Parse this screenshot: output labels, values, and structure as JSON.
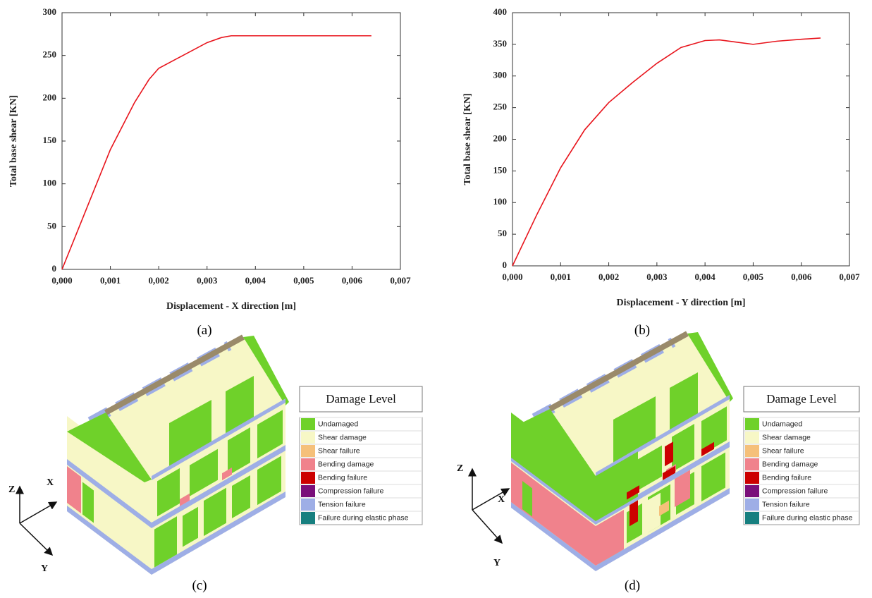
{
  "chart_data": [
    {
      "type": "line",
      "caption": "(a)",
      "x_label": "Displacement - X direction [m]",
      "y_label": "Total base shear [KN]",
      "x": [
        0,
        0.0005,
        0.001,
        0.0015,
        0.0018,
        0.002,
        0.0025,
        0.003,
        0.0033,
        0.0035,
        0.004,
        0.005,
        0.0064
      ],
      "series": [
        {
          "color": "#e8141c",
          "values": [
            0,
            70,
            140,
            195,
            222,
            235,
            250,
            265,
            271,
            273,
            273,
            273,
            273
          ]
        }
      ],
      "xlim": [
        0,
        0.007
      ],
      "ylim": [
        0,
        300
      ],
      "xticks": [
        {
          "value": 0,
          "label": "0,000"
        },
        {
          "value": 0.001,
          "label": "0,001"
        },
        {
          "value": 0.002,
          "label": "0,002"
        },
        {
          "value": 0.003,
          "label": "0,003"
        },
        {
          "value": 0.004,
          "label": "0,004"
        },
        {
          "value": 0.005,
          "label": "0,005"
        },
        {
          "value": 0.006,
          "label": "0,006"
        },
        {
          "value": 0.007,
          "label": "0,007"
        }
      ],
      "yticks": [
        0,
        50,
        100,
        150,
        200,
        250,
        300
      ]
    },
    {
      "type": "line",
      "caption": "(b)",
      "x_label": "Displacement - Y direction [m]",
      "y_label": "Total base shear [KN]",
      "x": [
        0,
        0.0005,
        0.001,
        0.0015,
        0.002,
        0.0025,
        0.003,
        0.0035,
        0.004,
        0.0043,
        0.0047,
        0.005,
        0.0055,
        0.006,
        0.0064
      ],
      "series": [
        {
          "color": "#e8141c",
          "values": [
            0,
            80,
            155,
            215,
            258,
            290,
            320,
            345,
            356,
            357,
            353,
            350,
            355,
            358,
            360
          ]
        }
      ],
      "xlim": [
        0,
        0.007
      ],
      "ylim": [
        0,
        400
      ],
      "xticks": [
        {
          "value": 0,
          "label": "0,000"
        },
        {
          "value": 0.001,
          "label": "0,001"
        },
        {
          "value": 0.002,
          "label": "0,002"
        },
        {
          "value": 0.003,
          "label": "0,003"
        },
        {
          "value": 0.004,
          "label": "0,004"
        },
        {
          "value": 0.005,
          "label": "0,005"
        },
        {
          "value": 0.006,
          "label": "0,006"
        },
        {
          "value": 0.007,
          "label": "0,007"
        }
      ],
      "yticks": [
        0,
        50,
        100,
        150,
        200,
        250,
        300,
        350,
        400
      ]
    }
  ],
  "figures": [
    {
      "caption": "(c)",
      "axes": {
        "z": "Z",
        "x": "X",
        "y": "Y"
      },
      "legend": {
        "title": "Damage Level",
        "items": [
          {
            "label": "Undamaged",
            "color": "#6fd12a"
          },
          {
            "label": "Shear damage",
            "color": "#f7f7c6"
          },
          {
            "label": "Shear failure",
            "color": "#f5c07a"
          },
          {
            "label": "Bending damage",
            "color": "#f0828c"
          },
          {
            "label": "Bending failure",
            "color": "#cc0000"
          },
          {
            "label": "Compression failure",
            "color": "#7a0f7a"
          },
          {
            "label": "Tension failure",
            "color": "#9eaee6"
          },
          {
            "label": "Failure during elastic phase",
            "color": "#177f7f"
          }
        ]
      }
    },
    {
      "caption": "(d)",
      "axes": {
        "z": "Z",
        "x": "X",
        "y": "Y"
      },
      "legend": {
        "title": "Damage Level",
        "items": [
          {
            "label": "Undamaged",
            "color": "#6fd12a"
          },
          {
            "label": "Shear damage",
            "color": "#f7f7c6"
          },
          {
            "label": "Shear failure",
            "color": "#f5c07a"
          },
          {
            "label": "Bending damage",
            "color": "#f0828c"
          },
          {
            "label": "Bending failure",
            "color": "#cc0000"
          },
          {
            "label": "Compression failure",
            "color": "#7a0f7a"
          },
          {
            "label": "Tension failure",
            "color": "#9eaee6"
          },
          {
            "label": "Failure during elastic phase",
            "color": "#177f7f"
          }
        ]
      }
    }
  ]
}
